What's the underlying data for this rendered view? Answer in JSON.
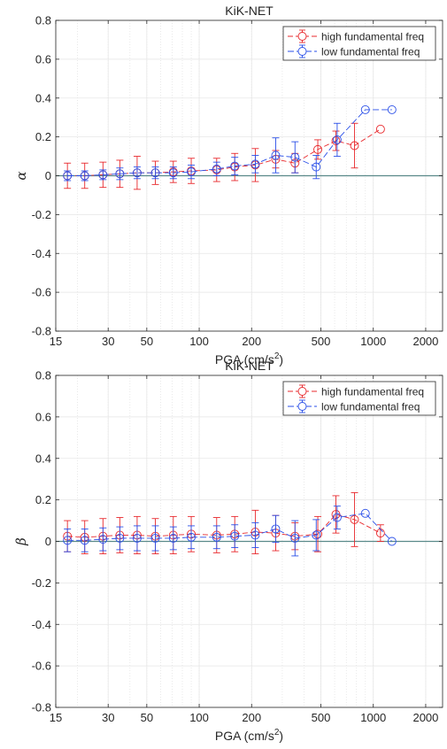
{
  "chart_data": [
    {
      "type": "scatter",
      "title": "KiK-NET",
      "xlabel": "PGA (cm/s",
      "xlabel_sup": "2",
      "xlabel_end": ")",
      "ylabel": "α",
      "xscale": "log",
      "xlim": [
        15,
        2500
      ],
      "ylim": [
        -0.8,
        0.8
      ],
      "grid": true,
      "legend_position": "top-right",
      "xticks": [
        15,
        30,
        50,
        100,
        200,
        500,
        1000,
        2000
      ],
      "xtick_labels": [
        "15",
        "30",
        "50",
        "100",
        "200",
        "500",
        "1000",
        "2000"
      ],
      "yticks": [
        -0.8,
        -0.6,
        -0.4,
        -0.2,
        0,
        0.2,
        0.4,
        0.6,
        0.8
      ],
      "ytick_labels": [
        "-0.8",
        "-0.6",
        "-0.4",
        "-0.2",
        "0",
        "0.2",
        "0.4",
        "0.6",
        "0.8"
      ],
      "zero_line_color": "#5a8a8a",
      "series": [
        {
          "name": "high fundamental freq",
          "color": "#e8282c",
          "x": [
            17.5,
            22,
            28,
            35,
            44,
            56,
            71,
            90,
            126,
            160,
            210,
            275,
            355,
            480,
            610,
            780,
            1100
          ],
          "y": [
            0.0,
            0.0,
            0.005,
            0.01,
            0.015,
            0.015,
            0.02,
            0.025,
            0.03,
            0.045,
            0.055,
            0.085,
            0.065,
            0.135,
            0.18,
            0.155,
            0.24
          ],
          "err": [
            0.065,
            0.065,
            0.065,
            0.07,
            0.085,
            0.06,
            0.055,
            0.065,
            0.06,
            0.07,
            0.085,
            0.045,
            0.05,
            0.05,
            0.05,
            0.115,
            0
          ]
        },
        {
          "name": "low fundamental freq",
          "color": "#2a4fe8",
          "x": [
            17.5,
            22,
            28,
            35,
            44,
            56,
            71,
            90,
            126,
            160,
            210,
            275,
            355,
            470,
            620,
            900,
            1280
          ],
          "y": [
            0.0,
            0.0,
            0.005,
            0.01,
            0.015,
            0.015,
            0.015,
            0.02,
            0.035,
            0.05,
            0.06,
            0.105,
            0.095,
            0.045,
            0.185,
            0.34,
            0.34
          ],
          "err": [
            0.025,
            0.025,
            0.025,
            0.03,
            0.03,
            0.03,
            0.03,
            0.035,
            0.035,
            0.045,
            0.045,
            0.09,
            0.08,
            0.06,
            0.085,
            0,
            0
          ]
        }
      ]
    },
    {
      "type": "scatter",
      "title": "KiK-NET",
      "xlabel": "PGA (cm/s",
      "xlabel_sup": "2",
      "xlabel_end": ")",
      "ylabel": "β",
      "xscale": "log",
      "xlim": [
        15,
        2500
      ],
      "ylim": [
        -0.8,
        0.8
      ],
      "grid": true,
      "legend_position": "top-right",
      "xticks": [
        15,
        30,
        50,
        100,
        200,
        500,
        1000,
        2000
      ],
      "xtick_labels": [
        "15",
        "30",
        "50",
        "100",
        "200",
        "500",
        "1000",
        "2000"
      ],
      "yticks": [
        -0.8,
        -0.6,
        -0.4,
        -0.2,
        0,
        0.2,
        0.4,
        0.6,
        0.8
      ],
      "ytick_labels": [
        "-0.8",
        "-0.6",
        "-0.4",
        "-0.2",
        "0",
        "0.2",
        "0.4",
        "0.6",
        "0.8"
      ],
      "zero_line_color": "#5a8a8a",
      "series": [
        {
          "name": "high fundamental freq",
          "color": "#e8282c",
          "x": [
            17.5,
            22,
            28,
            35,
            44,
            56,
            71,
            90,
            126,
            160,
            210,
            275,
            355,
            480,
            610,
            780,
            1100
          ],
          "y": [
            0.025,
            0.02,
            0.025,
            0.03,
            0.03,
            0.025,
            0.03,
            0.035,
            0.03,
            0.035,
            0.045,
            0.04,
            0.025,
            0.035,
            0.13,
            0.105,
            0.04
          ],
          "err": [
            0.075,
            0.08,
            0.085,
            0.085,
            0.09,
            0.085,
            0.09,
            0.085,
            0.085,
            0.085,
            0.105,
            0.085,
            0.065,
            0.085,
            0.09,
            0.13,
            0.04
          ]
        },
        {
          "name": "low fundamental freq",
          "color": "#2a4fe8",
          "x": [
            17.5,
            22,
            28,
            35,
            44,
            56,
            71,
            90,
            126,
            160,
            210,
            275,
            355,
            470,
            620,
            900,
            1280
          ],
          "y": [
            0.005,
            0.005,
            0.01,
            0.015,
            0.015,
            0.015,
            0.015,
            0.02,
            0.02,
            0.025,
            0.03,
            0.06,
            0.015,
            0.03,
            0.115,
            0.135,
            0.0
          ],
          "err": [
            0.055,
            0.055,
            0.055,
            0.055,
            0.06,
            0.06,
            0.055,
            0.055,
            0.055,
            0.055,
            0.06,
            0.065,
            0.085,
            0.075,
            0.055,
            0,
            0
          ]
        }
      ]
    }
  ]
}
